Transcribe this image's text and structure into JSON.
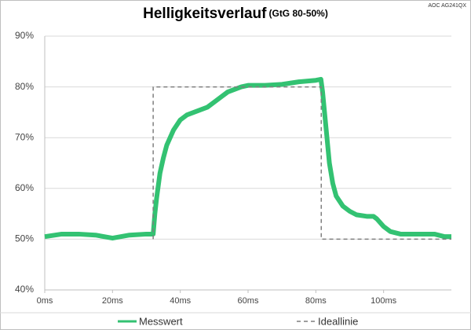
{
  "chart_data": {
    "type": "line",
    "title": "Helligkeitsverlauf",
    "subtitle": "(GtG 80-50%)",
    "corner_label": "AOC AG241QX",
    "xlim": [
      0,
      120
    ],
    "ylim": [
      40,
      90
    ],
    "xticks": [
      {
        "value": 0,
        "label": "0ms"
      },
      {
        "value": 20,
        "label": "20ms"
      },
      {
        "value": 40,
        "label": "40ms"
      },
      {
        "value": 60,
        "label": "60ms"
      },
      {
        "value": 80,
        "label": "80ms"
      },
      {
        "value": 100,
        "label": "100ms"
      }
    ],
    "yticks": [
      {
        "value": 40,
        "label": "40%"
      },
      {
        "value": 50,
        "label": "50%"
      },
      {
        "value": 60,
        "label": "60%"
      },
      {
        "value": 70,
        "label": "70%"
      },
      {
        "value": 80,
        "label": "80%"
      },
      {
        "value": 90,
        "label": "90%"
      }
    ],
    "grid": true,
    "series": [
      {
        "name": "Messwert",
        "color": "#33c272",
        "style": "solid",
        "x": [
          0,
          5,
          10,
          15,
          20,
          25,
          30,
          32,
          32.5,
          33,
          34,
          35,
          36,
          38,
          40,
          42,
          44,
          46,
          48,
          50,
          52,
          54,
          56,
          58,
          60,
          65,
          70,
          75,
          80,
          81.5,
          82,
          83,
          84,
          85,
          86,
          88,
          90,
          92,
          95,
          97,
          98,
          100,
          102,
          105,
          110,
          115,
          118,
          120
        ],
        "values": [
          50.5,
          51,
          51,
          50.8,
          50.2,
          50.8,
          51,
          51,
          55,
          58,
          63,
          66,
          68.5,
          71.5,
          73.5,
          74.5,
          75,
          75.5,
          76,
          77,
          78,
          79,
          79.5,
          80,
          80.3,
          80.3,
          80.5,
          81,
          81.3,
          81.5,
          79,
          72,
          65,
          61,
          58.5,
          56.5,
          55.5,
          54.8,
          54.5,
          54.5,
          54,
          52.5,
          51.5,
          51,
          51,
          51,
          50.5,
          50.5
        ]
      },
      {
        "name": "Ideallinie",
        "color": "#7f7f7f",
        "style": "dashed",
        "x": [
          32,
          32,
          81.6,
          81.6,
          120
        ],
        "values": [
          50,
          80,
          80,
          50,
          50
        ]
      }
    ]
  }
}
